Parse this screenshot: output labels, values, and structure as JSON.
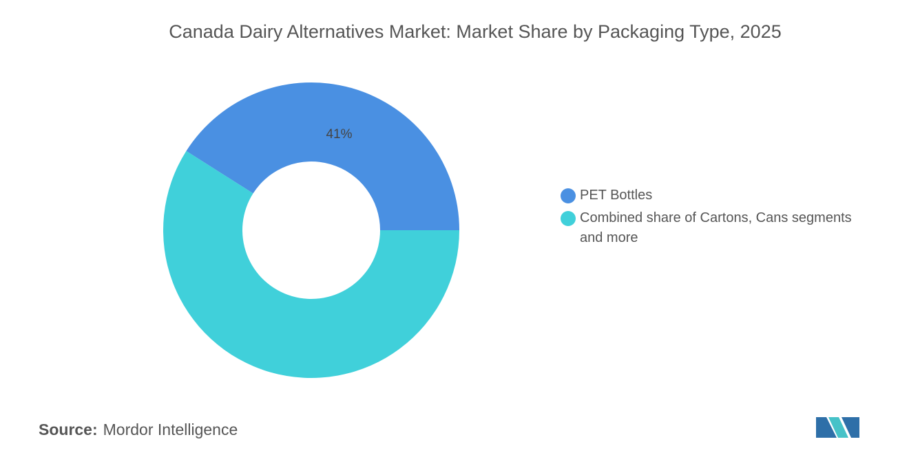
{
  "chart_data": {
    "type": "donut",
    "title": "Canada Dairy Alternatives Market: Market Share by Packaging Type, 2025",
    "categories": [
      "PET Bottles",
      "Combined share of Cartons, Cans segments and more"
    ],
    "values": [
      41,
      59
    ],
    "value_labels": [
      "41%",
      null
    ],
    "colors": [
      "#4a90e2",
      "#40d0da"
    ],
    "source_label": "Source:",
    "source": "Mordor Intelligence"
  }
}
